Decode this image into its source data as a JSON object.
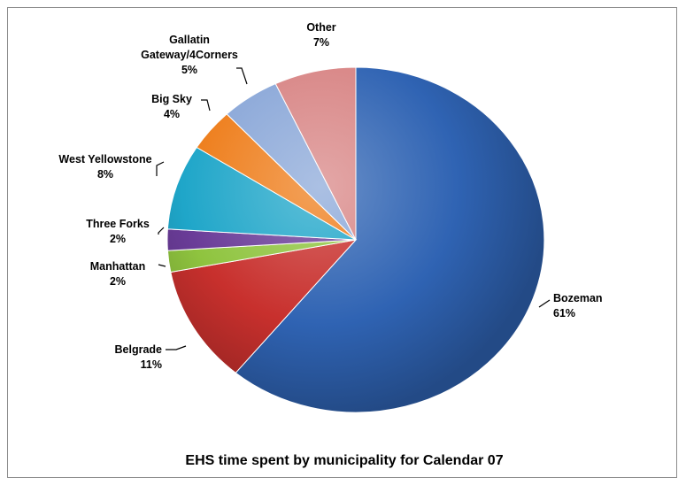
{
  "chart_data": {
    "type": "pie",
    "title": "EHS time spent by municipality for Calendar 07",
    "start_angle_deg": 0,
    "direction": "clockwise",
    "slices": [
      {
        "name": "Bozeman",
        "value": 61,
        "label_pct": "61%",
        "color": "#2f63b3"
      },
      {
        "name": "Belgrade",
        "value": 11,
        "label_pct": "11%",
        "color": "#c8302d"
      },
      {
        "name": "Manhattan",
        "value": 2,
        "label_pct": "2%",
        "color": "#8fc43f"
      },
      {
        "name": "Three Forks",
        "value": 2,
        "label_pct": "2%",
        "color": "#6a3c98"
      },
      {
        "name": "West Yellowstone",
        "value": 8,
        "label_pct": "8%",
        "color": "#1fa6c9"
      },
      {
        "name": "Big Sky",
        "value": 4,
        "label_pct": "4%",
        "color": "#ee7d1a"
      },
      {
        "name": "Gallatin Gateway/4Corners",
        "name_lines": [
          "Gallatin",
          "Gateway/4Corners"
        ],
        "value": 5,
        "label_pct": "5%",
        "color": "#8aa7d8"
      },
      {
        "name": "Other",
        "value": 7,
        "label_pct": "7%",
        "color": "#d88585"
      }
    ]
  }
}
